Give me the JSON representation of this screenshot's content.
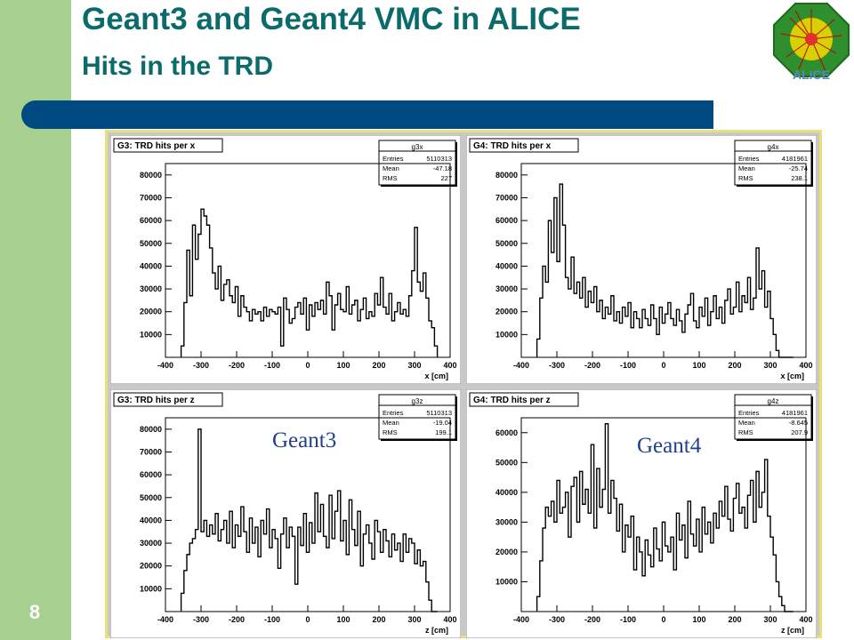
{
  "slide": {
    "title_line1": "Geant3 and Geant4 VMC in ALICE",
    "title_line2": "Hits in the TRD",
    "page_number": "8",
    "logo_text": "ALICE",
    "annotation_g3": "Geant3",
    "annotation_g4": "Geant4"
  },
  "colors": {
    "left_bar": "#a7cf8f",
    "title": "#0b6b6b",
    "blue_bar": "#004a82",
    "annotation": "#1f3f8f"
  },
  "chart_data": [
    {
      "type": "line",
      "title": "G3: TRD hits per x",
      "xlabel": "x [cm]",
      "stats": {
        "name": "g3x",
        "entries": "5110313",
        "mean": "-47.18",
        "rms": "227"
      },
      "xlim": [
        -400,
        400
      ],
      "ylim": [
        0,
        85000
      ],
      "xticks": [
        -400,
        -300,
        -200,
        -100,
        0,
        100,
        200,
        300,
        400
      ],
      "yticks": [
        10000,
        20000,
        30000,
        40000,
        50000,
        60000,
        70000,
        80000
      ],
      "x": [
        -352,
        -344,
        -336,
        -328,
        -320,
        -312,
        -304,
        -296,
        -288,
        -280,
        -272,
        -264,
        -256,
        -248,
        -240,
        -232,
        -224,
        -216,
        -208,
        -200,
        -192,
        -184,
        -176,
        -168,
        -160,
        -152,
        -144,
        -136,
        -128,
        -120,
        -112,
        -104,
        -96,
        -88,
        -80,
        -72,
        -64,
        -56,
        -48,
        -40,
        -32,
        -24,
        -16,
        -8,
        0,
        8,
        16,
        24,
        32,
        40,
        48,
        56,
        64,
        72,
        80,
        88,
        96,
        104,
        112,
        120,
        128,
        136,
        144,
        152,
        160,
        168,
        176,
        184,
        192,
        200,
        208,
        216,
        224,
        232,
        240,
        248,
        256,
        264,
        272,
        280,
        288,
        296,
        304,
        312,
        320,
        328,
        336,
        344,
        352,
        360
      ],
      "y": [
        5000,
        24000,
        47000,
        27000,
        58000,
        43000,
        54000,
        65000,
        62000,
        58000,
        48000,
        37000,
        30000,
        40000,
        25000,
        32000,
        34000,
        27000,
        24000,
        31000,
        18000,
        27000,
        22000,
        20000,
        16000,
        21000,
        19000,
        20000,
        16000,
        22000,
        18000,
        21000,
        20000,
        19000,
        22000,
        5000,
        26000,
        21000,
        15000,
        17000,
        22000,
        24000,
        19000,
        26000,
        12000,
        23000,
        18000,
        24000,
        21000,
        25000,
        19000,
        33000,
        27000,
        12000,
        23000,
        28000,
        21000,
        20000,
        31000,
        19000,
        23000,
        25000,
        16000,
        21000,
        26000,
        17000,
        20000,
        18000,
        28000,
        23000,
        35000,
        22000,
        19000,
        28000,
        16000,
        20000,
        24000,
        19000,
        21000,
        18000,
        27000,
        38000,
        57000,
        33000,
        29000,
        37000,
        26000,
        16000,
        13000,
        5000
      ]
    },
    {
      "type": "line",
      "title": "G4: TRD hits per x",
      "xlabel": "x [cm]",
      "stats": {
        "name": "g4x",
        "entries": "4181961",
        "mean": "-25.74",
        "rms": "238.1"
      },
      "xlim": [
        -400,
        400
      ],
      "ylim": [
        0,
        85000
      ],
      "xticks": [
        -400,
        -300,
        -200,
        -100,
        0,
        100,
        200,
        300,
        400
      ],
      "yticks": [
        10000,
        20000,
        30000,
        40000,
        50000,
        60000,
        70000,
        80000
      ],
      "x": [
        -352,
        -344,
        -336,
        -328,
        -320,
        -312,
        -304,
        -296,
        -288,
        -280,
        -272,
        -264,
        -256,
        -248,
        -240,
        -232,
        -224,
        -216,
        -208,
        -200,
        -192,
        -184,
        -176,
        -168,
        -160,
        -152,
        -144,
        -136,
        -128,
        -120,
        -112,
        -104,
        -96,
        -88,
        -80,
        -72,
        -64,
        -56,
        -48,
        -40,
        -32,
        -24,
        -16,
        -8,
        0,
        8,
        16,
        24,
        32,
        40,
        48,
        56,
        64,
        72,
        80,
        88,
        96,
        104,
        112,
        120,
        128,
        136,
        144,
        152,
        160,
        168,
        176,
        184,
        192,
        200,
        208,
        216,
        224,
        232,
        240,
        248,
        256,
        264,
        272,
        280,
        288,
        296,
        304,
        312,
        320,
        328,
        336,
        344,
        352,
        360
      ],
      "y": [
        8000,
        26000,
        40000,
        33000,
        60000,
        46000,
        70000,
        42000,
        76000,
        58000,
        35000,
        30000,
        44000,
        28000,
        33000,
        26000,
        35000,
        22000,
        29000,
        24000,
        31000,
        20000,
        25000,
        17000,
        22000,
        19000,
        27000,
        16000,
        20000,
        15000,
        22000,
        18000,
        24000,
        13000,
        20000,
        17000,
        13000,
        21000,
        17000,
        14000,
        23000,
        17000,
        10000,
        22000,
        15000,
        19000,
        24000,
        17000,
        14000,
        21000,
        16000,
        11000,
        19000,
        23000,
        28000,
        16000,
        13000,
        22000,
        18000,
        26000,
        14000,
        20000,
        27000,
        17000,
        22000,
        15000,
        25000,
        30000,
        19000,
        22000,
        33000,
        20000,
        27000,
        24000,
        35000,
        21000,
        26000,
        48000,
        30000,
        38000,
        22000,
        29000,
        17000,
        10000,
        3000,
        0,
        0,
        0,
        0,
        0
      ]
    },
    {
      "type": "line",
      "title": "G3: TRD hits per z",
      "xlabel": "z [cm]",
      "stats": {
        "name": "g3z",
        "entries": "5110313",
        "mean": "-19.04",
        "rms": "199.1"
      },
      "xlim": [
        -400,
        400
      ],
      "ylim": [
        0,
        85000
      ],
      "xticks": [
        -400,
        -300,
        -200,
        -100,
        0,
        100,
        200,
        300,
        400
      ],
      "yticks": [
        10000,
        20000,
        30000,
        40000,
        50000,
        60000,
        70000,
        80000
      ],
      "x": [
        -352,
        -344,
        -336,
        -328,
        -320,
        -312,
        -304,
        -296,
        -288,
        -280,
        -272,
        -264,
        -256,
        -248,
        -240,
        -232,
        -224,
        -216,
        -208,
        -200,
        -192,
        -184,
        -176,
        -168,
        -160,
        -152,
        -144,
        -136,
        -128,
        -120,
        -112,
        -104,
        -96,
        -88,
        -80,
        -72,
        -64,
        -56,
        -48,
        -40,
        -32,
        -24,
        -16,
        -8,
        0,
        8,
        16,
        24,
        32,
        40,
        48,
        56,
        64,
        72,
        80,
        88,
        96,
        104,
        112,
        120,
        128,
        136,
        144,
        152,
        160,
        168,
        176,
        184,
        192,
        200,
        208,
        216,
        224,
        232,
        240,
        248,
        256,
        264,
        272,
        280,
        288,
        296,
        304,
        312,
        320,
        328,
        336,
        344,
        352,
        360
      ],
      "y": [
        8000,
        18000,
        25000,
        30000,
        32000,
        36000,
        80000,
        35000,
        40000,
        33000,
        38000,
        34000,
        43000,
        31000,
        36000,
        40000,
        30000,
        44000,
        28000,
        38000,
        33000,
        46000,
        35000,
        26000,
        41000,
        30000,
        37000,
        24000,
        40000,
        34000,
        45000,
        28000,
        36000,
        32000,
        19000,
        34000,
        41000,
        28000,
        37000,
        33000,
        12000,
        37000,
        29000,
        43000,
        26000,
        39000,
        30000,
        52000,
        35000,
        47000,
        33000,
        28000,
        51000,
        32000,
        44000,
        53000,
        31000,
        40000,
        25000,
        49000,
        36000,
        29000,
        44000,
        20000,
        34000,
        38000,
        30000,
        23000,
        40000,
        35000,
        26000,
        36000,
        31000,
        24000,
        34000,
        27000,
        30000,
        22000,
        34000,
        26000,
        32000,
        30000,
        21000,
        27000,
        20000,
        22000,
        13000,
        5000,
        0,
        0
      ]
    },
    {
      "type": "line",
      "title": "G4: TRD hits per z",
      "xlabel": "z [cm]",
      "stats": {
        "name": "g4z",
        "entries": "4181961",
        "mean": "-8.645",
        "rms": "207.9"
      },
      "xlim": [
        -400,
        400
      ],
      "ylim": [
        0,
        65000
      ],
      "xticks": [
        -400,
        -300,
        -200,
        -100,
        0,
        100,
        200,
        300,
        400
      ],
      "yticks": [
        10000,
        20000,
        30000,
        40000,
        50000,
        60000
      ],
      "x": [
        -352,
        -344,
        -336,
        -328,
        -320,
        -312,
        -304,
        -296,
        -288,
        -280,
        -272,
        -264,
        -256,
        -248,
        -240,
        -232,
        -224,
        -216,
        -208,
        -200,
        -192,
        -184,
        -176,
        -168,
        -160,
        -152,
        -144,
        -136,
        -128,
        -120,
        -112,
        -104,
        -96,
        -88,
        -80,
        -72,
        -64,
        -56,
        -48,
        -40,
        -32,
        -24,
        -16,
        -8,
        0,
        8,
        16,
        24,
        32,
        40,
        48,
        56,
        64,
        72,
        80,
        88,
        96,
        104,
        112,
        120,
        128,
        136,
        144,
        152,
        160,
        168,
        176,
        184,
        192,
        200,
        208,
        216,
        224,
        232,
        240,
        248,
        256,
        264,
        272,
        280,
        288,
        296,
        304,
        312,
        320,
        328,
        336,
        344,
        352,
        360
      ],
      "y": [
        5000,
        17000,
        28000,
        35000,
        32000,
        37000,
        30000,
        44000,
        33000,
        35000,
        40000,
        25000,
        42000,
        45000,
        30000,
        47000,
        36000,
        41000,
        33000,
        56000,
        28000,
        48000,
        35000,
        41000,
        63000,
        33000,
        44000,
        38000,
        27000,
        36000,
        20000,
        29000,
        25000,
        32000,
        14000,
        25000,
        20000,
        12000,
        24000,
        19000,
        15000,
        28000,
        21000,
        17000,
        30000,
        22000,
        20000,
        25000,
        14000,
        33000,
        24000,
        29000,
        18000,
        37000,
        26000,
        22000,
        31000,
        20000,
        35000,
        26000,
        30000,
        23000,
        33000,
        28000,
        37000,
        32000,
        42000,
        31000,
        27000,
        38000,
        43000,
        33000,
        35000,
        28000,
        39000,
        44000,
        30000,
        47000,
        35000,
        40000,
        51000,
        32000,
        25000,
        19000,
        10000,
        5000,
        2000,
        0,
        0,
        0
      ]
    }
  ]
}
